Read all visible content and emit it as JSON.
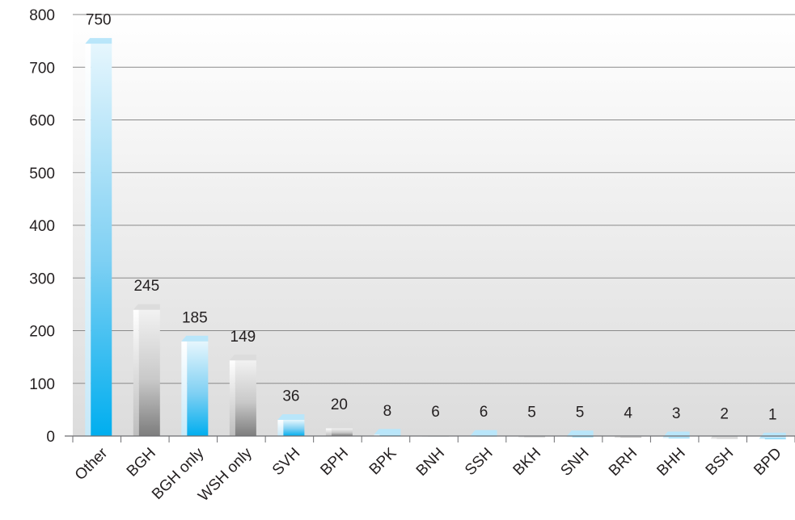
{
  "chart_data": {
    "type": "bar",
    "title": "",
    "xlabel": "",
    "ylabel": "",
    "ylim": [
      0,
      800
    ],
    "yticks": [
      0,
      100,
      200,
      300,
      400,
      500,
      600,
      700,
      800
    ],
    "grid": true,
    "categories": [
      "Other",
      "BGH",
      "BGH only",
      "WSH only",
      "SVH",
      "BPH",
      "BPK",
      "BNH",
      "SSH",
      "BKH",
      "SNH",
      "BRH",
      "BHH",
      "BSH",
      "BPD"
    ],
    "values": [
      750,
      245,
      185,
      149,
      36,
      20,
      8,
      6,
      6,
      5,
      5,
      4,
      3,
      2,
      1
    ],
    "data_labels": [
      "750",
      "245",
      "185",
      "149",
      "36",
      "20",
      "8",
      "6",
      "6",
      "5",
      "5",
      "4",
      "3",
      "2",
      "1"
    ],
    "bar_colors": [
      "blue",
      "grey",
      "blue",
      "grey",
      "blue",
      "grey",
      "blue",
      "grey",
      "blue",
      "grey",
      "blue",
      "grey",
      "blue",
      "grey",
      "blue"
    ],
    "colors": {
      "blue_light": "#d8f0fc",
      "blue_mid": "#7fd0f3",
      "blue_dark": "#00aeef",
      "grey_light": "#ececec",
      "grey_mid": "#c9c9c9",
      "grey_dark": "#808080",
      "gridline": "#8a8a8a"
    }
  }
}
